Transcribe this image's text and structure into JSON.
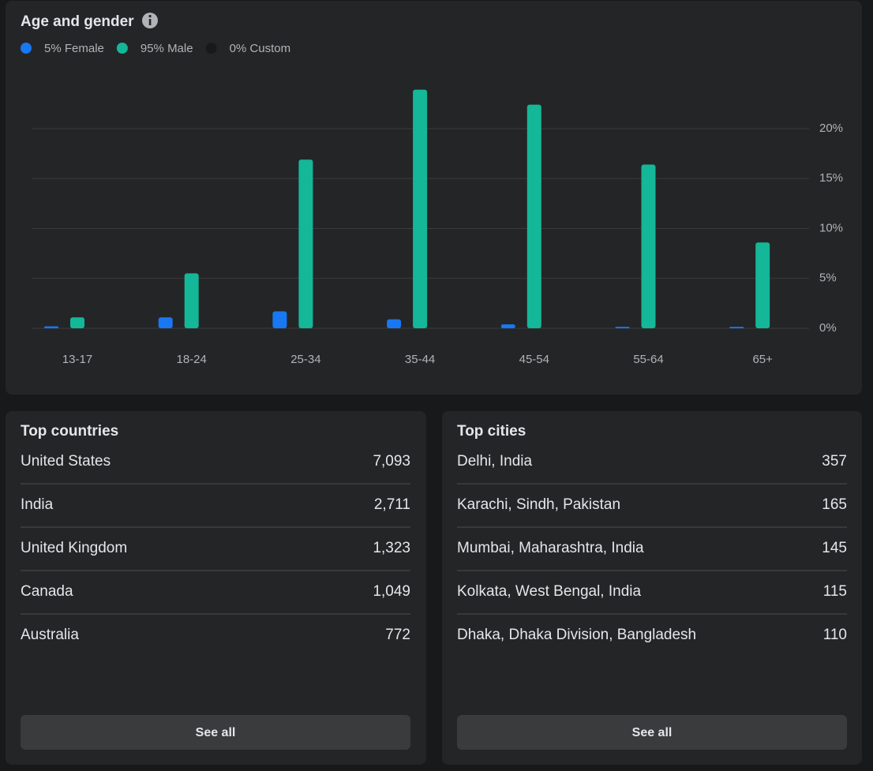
{
  "chart_data": {
    "type": "bar",
    "title": "Age and gender",
    "categories": [
      "13-17",
      "18-24",
      "25-34",
      "35-44",
      "45-54",
      "55-64",
      "65+"
    ],
    "series": [
      {
        "name": "5% Female",
        "color": "#1877f2",
        "values": [
          0.2,
          1.1,
          1.7,
          0.9,
          0.4,
          0.15,
          0.15
        ]
      },
      {
        "name": "95% Male",
        "color": "#14b797",
        "values": [
          1.1,
          5.5,
          16.9,
          23.9,
          22.4,
          16.4,
          8.6
        ]
      },
      {
        "name": "0% Custom",
        "color": "#18191a",
        "values": [
          0,
          0,
          0,
          0,
          0,
          0,
          0
        ]
      }
    ],
    "ylim": [
      0,
      25
    ],
    "yticks": [
      {
        "value": 0,
        "label": "0%"
      },
      {
        "value": 5,
        "label": "5%"
      },
      {
        "value": 10,
        "label": "10%"
      },
      {
        "value": 15,
        "label": "15%"
      },
      {
        "value": 20,
        "label": "20%"
      }
    ],
    "grid": true
  },
  "countries": {
    "title": "Top countries",
    "rows": [
      [
        "United States",
        "7,093"
      ],
      [
        "India",
        "2,711"
      ],
      [
        "United Kingdom",
        "1,323"
      ],
      [
        "Canada",
        "1,049"
      ],
      [
        "Australia",
        "772"
      ]
    ],
    "button": "See all"
  },
  "cities": {
    "title": "Top cities",
    "rows": [
      [
        "Delhi, India",
        "357"
      ],
      [
        "Karachi, Sindh, Pakistan",
        "165"
      ],
      [
        "Mumbai, Maharashtra, India",
        "145"
      ],
      [
        "Kolkata, West Bengal, India",
        "115"
      ],
      [
        "Dhaka, Dhaka Division, Bangladesh",
        "110"
      ]
    ],
    "button": "See all"
  }
}
